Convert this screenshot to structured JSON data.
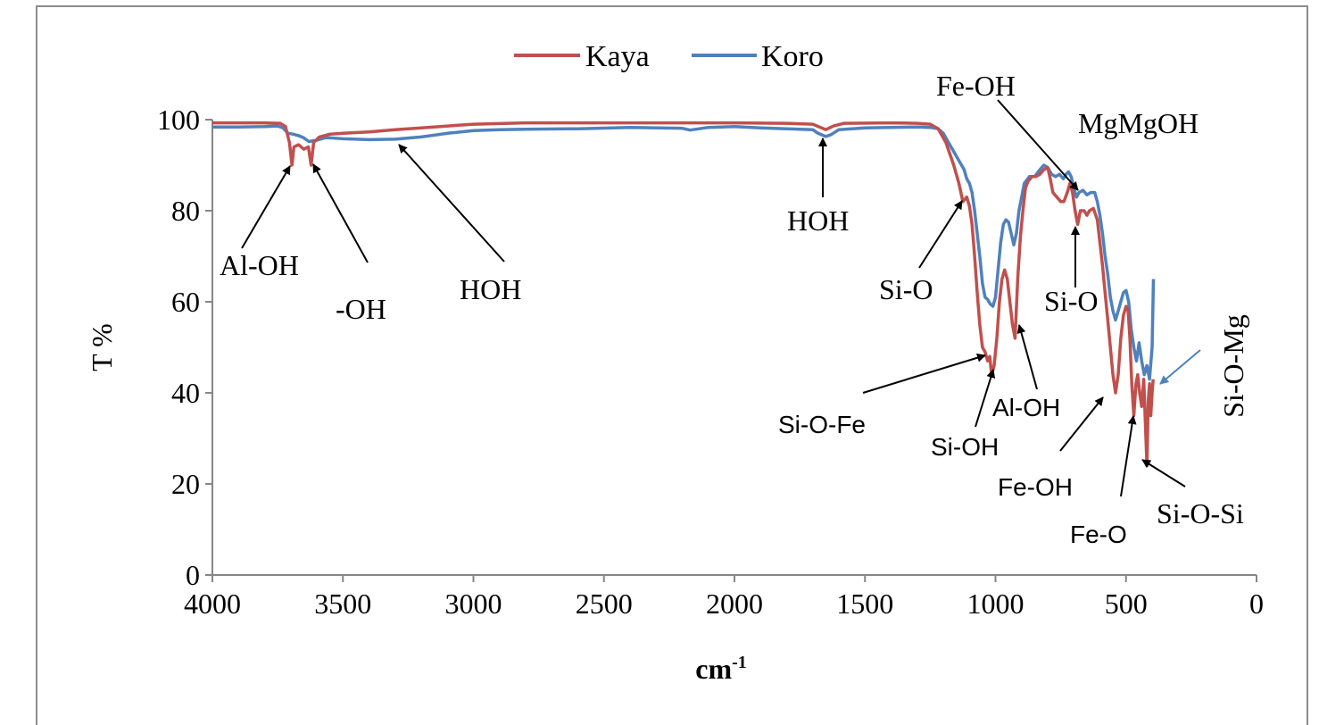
{
  "chart_data": {
    "type": "line",
    "xlabel": "cm",
    "xlabel_sup": "-1",
    "ylabel": "T %",
    "xlim": [
      4000,
      0
    ],
    "ylim": [
      0,
      100
    ],
    "x_ticks": [
      "4000",
      "3500",
      "3000",
      "2500",
      "2000",
      "1500",
      "1000",
      "500",
      "0"
    ],
    "y_ticks": [
      "0",
      "20",
      "40",
      "60",
      "80",
      "100"
    ],
    "grid": false,
    "legend_position": "top-center",
    "series": [
      {
        "name": "Kaya",
        "color": "#c0504d",
        "points": [
          [
            4000,
            99.3
          ],
          [
            3800,
            99.3
          ],
          [
            3740,
            99.2
          ],
          [
            3720,
            98.5
          ],
          [
            3705,
            95
          ],
          [
            3695,
            90
          ],
          [
            3688,
            94
          ],
          [
            3670,
            94.5
          ],
          [
            3650,
            93.5
          ],
          [
            3632,
            94
          ],
          [
            3622,
            90
          ],
          [
            3612,
            95
          ],
          [
            3590,
            96.2
          ],
          [
            3550,
            96.8
          ],
          [
            3500,
            97
          ],
          [
            3400,
            97.3
          ],
          [
            3300,
            97.8
          ],
          [
            3200,
            98.2
          ],
          [
            3000,
            99
          ],
          [
            2800,
            99.3
          ],
          [
            2500,
            99.3
          ],
          [
            2200,
            99.3
          ],
          [
            2000,
            99.3
          ],
          [
            1800,
            99.2
          ],
          [
            1700,
            99
          ],
          [
            1650,
            97.8
          ],
          [
            1620,
            98.6
          ],
          [
            1580,
            99.2
          ],
          [
            1400,
            99.3
          ],
          [
            1300,
            99.2
          ],
          [
            1250,
            99
          ],
          [
            1220,
            98
          ],
          [
            1190,
            95
          ],
          [
            1160,
            90
          ],
          [
            1140,
            86
          ],
          [
            1125,
            82
          ],
          [
            1110,
            83
          ],
          [
            1100,
            81
          ],
          [
            1090,
            77
          ],
          [
            1080,
            70
          ],
          [
            1070,
            62
          ],
          [
            1060,
            55
          ],
          [
            1050,
            50
          ],
          [
            1040,
            49
          ],
          [
            1030,
            47
          ],
          [
            1022,
            48
          ],
          [
            1015,
            44
          ],
          [
            1005,
            46
          ],
          [
            995,
            52
          ],
          [
            985,
            60
          ],
          [
            975,
            65
          ],
          [
            965,
            67
          ],
          [
            955,
            65
          ],
          [
            945,
            60
          ],
          [
            935,
            55
          ],
          [
            925,
            52
          ],
          [
            915,
            65
          ],
          [
            905,
            74
          ],
          [
            895,
            80
          ],
          [
            885,
            85
          ],
          [
            875,
            86.5
          ],
          [
            860,
            87.5
          ],
          [
            845,
            87.5
          ],
          [
            830,
            88
          ],
          [
            815,
            89
          ],
          [
            800,
            89.5
          ],
          [
            790,
            87
          ],
          [
            780,
            84
          ],
          [
            765,
            83
          ],
          [
            750,
            82
          ],
          [
            738,
            82
          ],
          [
            725,
            84
          ],
          [
            715,
            86
          ],
          [
            705,
            84
          ],
          [
            695,
            80
          ],
          [
            685,
            77
          ],
          [
            675,
            80
          ],
          [
            660,
            80
          ],
          [
            650,
            79
          ],
          [
            640,
            80
          ],
          [
            625,
            80.5
          ],
          [
            610,
            78
          ],
          [
            600,
            73
          ],
          [
            590,
            68
          ],
          [
            580,
            62
          ],
          [
            570,
            56
          ],
          [
            560,
            50
          ],
          [
            550,
            44
          ],
          [
            540,
            40
          ],
          [
            530,
            44
          ],
          [
            520,
            52
          ],
          [
            510,
            57
          ],
          [
            500,
            59
          ],
          [
            492,
            58
          ],
          [
            485,
            52
          ],
          [
            478,
            42
          ],
          [
            470,
            35
          ],
          [
            462,
            42
          ],
          [
            455,
            44
          ],
          [
            448,
            40
          ],
          [
            440,
            37
          ],
          [
            432,
            43
          ],
          [
            425,
            32
          ],
          [
            420,
            24
          ],
          [
            415,
            38
          ],
          [
            410,
            42
          ],
          [
            405,
            35
          ],
          [
            400,
            40
          ],
          [
            396,
            43
          ]
        ]
      },
      {
        "name": "Koro",
        "color": "#4f81bd",
        "points": [
          [
            4000,
            98.4
          ],
          [
            3900,
            98.4
          ],
          [
            3800,
            98.5
          ],
          [
            3750,
            98.6
          ],
          [
            3730,
            98.2
          ],
          [
            3710,
            97
          ],
          [
            3690,
            96.8
          ],
          [
            3670,
            96.5
          ],
          [
            3650,
            96
          ],
          [
            3630,
            95.2
          ],
          [
            3600,
            95.5
          ],
          [
            3570,
            96
          ],
          [
            3550,
            96
          ],
          [
            3500,
            95.8
          ],
          [
            3400,
            95.6
          ],
          [
            3300,
            95.7
          ],
          [
            3200,
            96.2
          ],
          [
            3100,
            97
          ],
          [
            3000,
            97.6
          ],
          [
            2900,
            97.8
          ],
          [
            2800,
            97.9
          ],
          [
            2600,
            98
          ],
          [
            2400,
            98.3
          ],
          [
            2200,
            98.1
          ],
          [
            2170,
            97.7
          ],
          [
            2100,
            98.3
          ],
          [
            2000,
            98.5
          ],
          [
            1900,
            98.2
          ],
          [
            1800,
            98
          ],
          [
            1700,
            97.8
          ],
          [
            1680,
            97
          ],
          [
            1650,
            96.3
          ],
          [
            1630,
            96.7
          ],
          [
            1600,
            97.8
          ],
          [
            1500,
            98.2
          ],
          [
            1300,
            98.4
          ],
          [
            1250,
            98.3
          ],
          [
            1220,
            98
          ],
          [
            1200,
            97
          ],
          [
            1180,
            95
          ],
          [
            1160,
            93
          ],
          [
            1140,
            91
          ],
          [
            1120,
            89
          ],
          [
            1110,
            87
          ],
          [
            1100,
            86
          ],
          [
            1090,
            84
          ],
          [
            1080,
            80
          ],
          [
            1070,
            75
          ],
          [
            1060,
            70
          ],
          [
            1050,
            64
          ],
          [
            1040,
            61
          ],
          [
            1030,
            60.5
          ],
          [
            1020,
            59.5
          ],
          [
            1010,
            59
          ],
          [
            1000,
            61
          ],
          [
            990,
            67
          ],
          [
            980,
            73
          ],
          [
            970,
            77
          ],
          [
            960,
            78
          ],
          [
            950,
            77.5
          ],
          [
            940,
            75
          ],
          [
            930,
            72.5
          ],
          [
            920,
            75
          ],
          [
            910,
            80
          ],
          [
            900,
            83
          ],
          [
            890,
            86
          ],
          [
            870,
            87.5
          ],
          [
            850,
            87.5
          ],
          [
            830,
            89
          ],
          [
            815,
            90
          ],
          [
            800,
            89.5
          ],
          [
            785,
            88
          ],
          [
            770,
            87.5
          ],
          [
            755,
            88
          ],
          [
            740,
            87
          ],
          [
            730,
            88
          ],
          [
            720,
            88.5
          ],
          [
            710,
            87.5
          ],
          [
            700,
            85
          ],
          [
            690,
            83
          ],
          [
            680,
            84
          ],
          [
            665,
            84.5
          ],
          [
            650,
            83.5
          ],
          [
            635,
            84
          ],
          [
            620,
            84
          ],
          [
            610,
            82
          ],
          [
            600,
            79
          ],
          [
            590,
            75
          ],
          [
            580,
            70
          ],
          [
            570,
            66
          ],
          [
            560,
            61
          ],
          [
            550,
            58
          ],
          [
            540,
            56
          ],
          [
            530,
            58
          ],
          [
            520,
            60
          ],
          [
            510,
            62
          ],
          [
            500,
            62.5
          ],
          [
            490,
            60
          ],
          [
            480,
            54
          ],
          [
            470,
            50
          ],
          [
            460,
            47
          ],
          [
            450,
            51
          ],
          [
            440,
            47
          ],
          [
            430,
            44
          ],
          [
            420,
            46
          ],
          [
            410,
            43
          ],
          [
            400,
            50
          ],
          [
            395,
            65
          ]
        ]
      }
    ]
  },
  "annotations": [
    {
      "text": "Al-OH"
    },
    {
      "text": "-OH"
    },
    {
      "text": "HOH"
    },
    {
      "text": "HOH"
    },
    {
      "text": "Fe-OH"
    },
    {
      "text": "MgMgOH"
    },
    {
      "text": "Si-O"
    },
    {
      "text": "Si-O"
    },
    {
      "text": "Si-O-Fe"
    },
    {
      "text": "Si-OH"
    },
    {
      "text": "Al-OH"
    },
    {
      "text": "Fe-OH"
    },
    {
      "text": "Fe-O"
    },
    {
      "text": "Si-O-Si"
    },
    {
      "text": "Si-O-Mg"
    }
  ]
}
